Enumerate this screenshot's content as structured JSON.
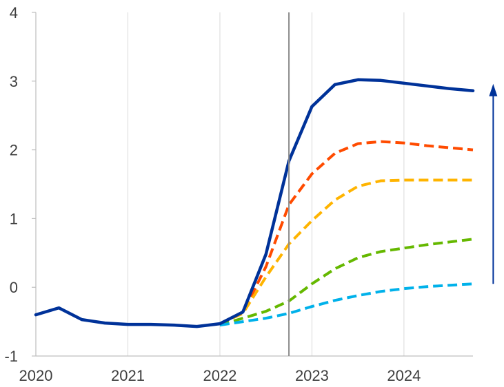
{
  "chart_data": {
    "type": "line",
    "title": "",
    "xlabel": "",
    "ylabel": "",
    "xlim": [
      2020.0,
      2024.75
    ],
    "ylim": [
      -1,
      4
    ],
    "x_ticks": [
      "2020",
      "2021",
      "2022",
      "2023",
      "2024"
    ],
    "y_ticks": [
      "-1",
      "0",
      "1",
      "2",
      "3",
      "4"
    ],
    "grid": {
      "vertical": true,
      "horizontal": false
    },
    "vertical_marker_x": 2022.75,
    "arrow": {
      "x": 2024.97,
      "from_y": 0.05,
      "to_y": 2.9,
      "direction": "up"
    },
    "series": [
      {
        "color": "#003299",
        "style": "solid",
        "x": [
          2020.0,
          2020.25,
          2020.5,
          2020.75,
          2021.0,
          2021.25,
          2021.5,
          2021.75,
          2022.0,
          2022.25,
          2022.5,
          2022.75,
          2023.0,
          2023.25,
          2023.5,
          2023.75,
          2024.0,
          2024.25,
          2024.5,
          2024.75
        ],
        "y": [
          -0.4,
          -0.3,
          -0.47,
          -0.52,
          -0.54,
          -0.54,
          -0.55,
          -0.57,
          -0.53,
          -0.36,
          0.48,
          1.84,
          2.63,
          2.95,
          3.02,
          3.01,
          2.97,
          2.93,
          2.89,
          2.86
        ]
      },
      {
        "color": "#ff4b00",
        "style": "dashed",
        "x": [
          2022.0,
          2022.25,
          2022.5,
          2022.75,
          2023.0,
          2023.25,
          2023.5,
          2023.75,
          2024.0,
          2024.25,
          2024.5,
          2024.75
        ],
        "y": [
          -0.53,
          -0.37,
          0.3,
          1.2,
          1.65,
          1.95,
          2.09,
          2.12,
          2.1,
          2.06,
          2.03,
          2.0
        ]
      },
      {
        "color": "#ffb400",
        "style": "dashed",
        "x": [
          2022.0,
          2022.25,
          2022.5,
          2022.75,
          2023.0,
          2023.25,
          2023.5,
          2023.75,
          2024.0,
          2024.25,
          2024.5,
          2024.75
        ],
        "y": [
          -0.53,
          -0.38,
          0.15,
          0.63,
          0.97,
          1.27,
          1.47,
          1.55,
          1.56,
          1.56,
          1.56,
          1.56
        ]
      },
      {
        "color": "#65b800",
        "style": "dashed",
        "x": [
          2022.0,
          2022.25,
          2022.5,
          2022.75,
          2023.0,
          2023.25,
          2023.5,
          2023.75,
          2024.0,
          2024.25,
          2024.5,
          2024.75
        ],
        "y": [
          -0.55,
          -0.45,
          -0.35,
          -0.2,
          0.05,
          0.27,
          0.43,
          0.52,
          0.57,
          0.62,
          0.66,
          0.7
        ]
      },
      {
        "color": "#00b1ea",
        "style": "dashed",
        "x": [
          2022.0,
          2022.25,
          2022.5,
          2022.75,
          2023.0,
          2023.25,
          2023.5,
          2023.75,
          2024.0,
          2024.25,
          2024.5,
          2024.75
        ],
        "y": [
          -0.55,
          -0.5,
          -0.45,
          -0.38,
          -0.28,
          -0.19,
          -0.12,
          -0.06,
          -0.02,
          0.01,
          0.03,
          0.05
        ]
      }
    ]
  },
  "colors": {
    "grid": "#d9d9d9",
    "axis": "#bfbfbf",
    "marker": "#8c8c8c",
    "arrow": "#003299"
  }
}
